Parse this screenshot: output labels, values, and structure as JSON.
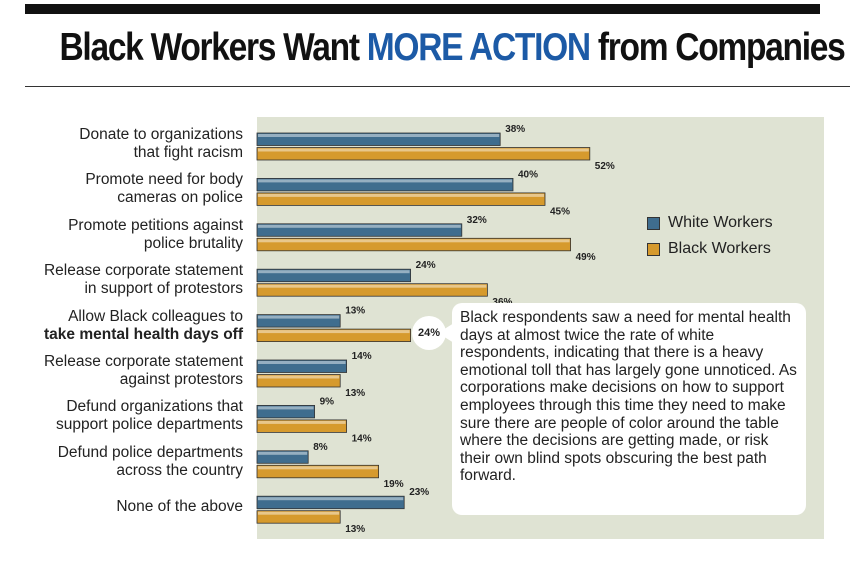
{
  "title": {
    "part1": "Black Workers Want ",
    "accent": "MORE ACTION",
    "part2": " from Companies"
  },
  "colors": {
    "white_workers": "#3f6d8e",
    "black_workers": "#d69a2d",
    "accent": "#1c5aa6",
    "panel": "#dfe3d3"
  },
  "legend": {
    "white_workers": "White Workers",
    "black_workers": "Black Workers"
  },
  "callout": {
    "badge": "24%",
    "text": "Black respondents saw a need for mental health days at almost twice the rate of white respondents, indicating that there is a heavy emotional toll that has largely gone unnoticed. As corporations make decisions on how to support employees through this time they need to make sure there are people of color around the table where the decisions are getting made, or risk their own blind spots obscuring the best path forward."
  },
  "chart_data": {
    "type": "bar",
    "orientation": "horizontal",
    "categories": [
      {
        "line1": "Donate to organizations",
        "line2": "that fight racism"
      },
      {
        "line1": "Promote need for body",
        "line2": "cameras on police"
      },
      {
        "line1": "Promote petitions against",
        "line2": "police brutality"
      },
      {
        "line1": "Release corporate statement",
        "line2": "in support of protestors"
      },
      {
        "line1": "Allow Black colleagues to",
        "line2": "take mental health days off"
      },
      {
        "line1": "Release corporate statement",
        "line2": "against protestors"
      },
      {
        "line1": "Defund organizations that",
        "line2": "support police departments"
      },
      {
        "line1": "Defund police departments",
        "line2": "across the country"
      },
      {
        "line1": "None of the above",
        "line2": ""
      }
    ],
    "series": [
      {
        "name": "White Workers",
        "values": [
          38,
          40,
          32,
          24,
          13,
          14,
          9,
          8,
          23
        ]
      },
      {
        "name": "Black Workers",
        "values": [
          52,
          45,
          49,
          36,
          24,
          13,
          14,
          19,
          13
        ]
      }
    ],
    "value_labels": {
      "white": [
        "38%",
        "40%",
        "32%",
        "24%",
        "13%",
        "14%",
        "9%",
        "8%",
        "23%"
      ],
      "black": [
        "52%",
        "45%",
        "49%",
        "36%",
        "",
        "13%",
        "14%",
        "19%",
        "13%"
      ]
    },
    "xlim": [
      0,
      100
    ],
    "grid": false,
    "legend_position": "right"
  }
}
